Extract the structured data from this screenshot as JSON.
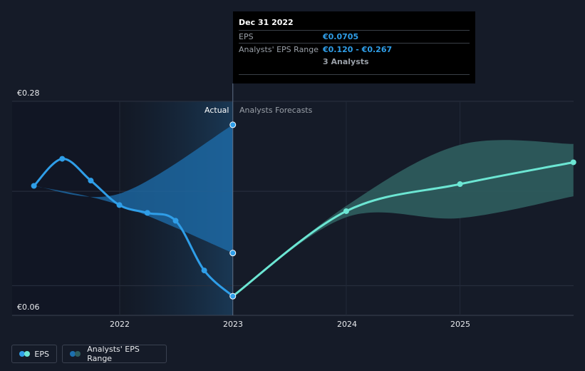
{
  "tooltip": {
    "date": "Dec 31 2022",
    "eps_label": "EPS",
    "eps_value": "€0.0705",
    "range_label": "Analysts' EPS Range",
    "range_value": "€0.120 - €0.267",
    "analysts": "3 Analysts"
  },
  "labels": {
    "actual": "Actual",
    "forecast": "Analysts Forecasts"
  },
  "legend": {
    "eps": "EPS",
    "range": "Analysts' EPS Range"
  },
  "colors": {
    "background": "#151b28",
    "eps_actual": "#2f9ee8",
    "eps_forecast": "#6ce6d3",
    "range_actual": "#1d6fae",
    "range_forecast": "#2f5e5e"
  },
  "chart_data": {
    "type": "line",
    "y_ticks": [
      "€0.06",
      "€0.28"
    ],
    "x_ticks": [
      "2022",
      "2023",
      "2024",
      "2025"
    ],
    "ylim": [
      0.06,
      0.28
    ],
    "grid": true,
    "series": [
      {
        "name": "EPS",
        "segment": "actual",
        "x": [
          "2021-03-31",
          "2021-06-30",
          "2021-09-30",
          "2021-12-31",
          "2022-03-31",
          "2022-06-30",
          "2022-09-30",
          "2022-12-31"
        ],
        "values": [
          0.197,
          0.228,
          0.203,
          0.175,
          0.166,
          0.157,
          0.1,
          0.0705
        ]
      },
      {
        "name": "EPS",
        "segment": "forecast",
        "x": [
          "2022-12-31",
          "2023-12-31",
          "2024-12-31",
          "2025-12-31"
        ],
        "values": [
          0.0705,
          0.168,
          0.199,
          0.224
        ]
      }
    ],
    "range": {
      "name": "Analysts' EPS Range",
      "actual": {
        "x": [
          "2021-03-31",
          "2021-12-31",
          "2022-12-31"
        ],
        "low": [
          0.197,
          0.175,
          0.12
        ],
        "high": [
          0.197,
          0.188,
          0.267
        ]
      },
      "forecast": {
        "x": [
          "2022-12-31",
          "2023-12-31",
          "2024-12-31",
          "2025-12-31"
        ],
        "low": [
          0.0705,
          0.161,
          0.16,
          0.185
        ],
        "high": [
          0.0705,
          0.174,
          0.244,
          0.245
        ]
      }
    }
  }
}
